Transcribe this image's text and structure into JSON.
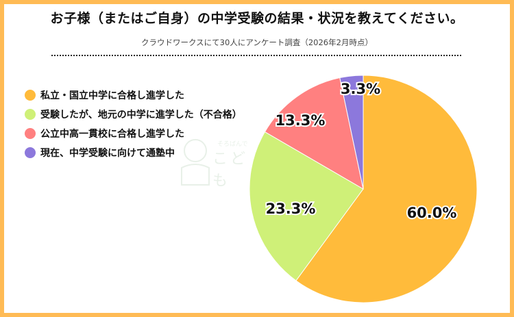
{
  "title": "お子様（またはご自身）の中学受験の結果・状況を教えてください。",
  "subtitle": "クラウドワークスにて30人にアンケート調査（2026年2月時点）",
  "watermark": {
    "tagline": "そろばんで",
    "logo": "こども"
  },
  "colors": {
    "frame": "#ffbb55",
    "private": "#ffbb3b",
    "failed": "#cff078",
    "public_integrated": "#ff8080",
    "cram": "#8c78dc"
  },
  "legend": [
    {
      "label": "私立・国立中学に合格し進学した",
      "color": "#ffbb3b"
    },
    {
      "label": "受験したが、地元の中学に進学した（不合格）",
      "color": "#cff078"
    },
    {
      "label": "公立中高一貫校に合格し進学した",
      "color": "#ff8080"
    },
    {
      "label": "現在、中学受験に向けて通塾中",
      "color": "#8c78dc"
    }
  ],
  "labels": [
    "60.0%",
    "23.3%",
    "13.3%",
    "3.3%"
  ],
  "chart_data": {
    "type": "pie",
    "title": "お子様（またはご自身）の中学受験の結果・状況を教えてください。",
    "subtitle": "クラウドワークスにて30人にアンケート調査（2026年2月時点）",
    "categories": [
      "私立・国立中学に合格し進学した",
      "受験したが、地元の中学に進学した（不合格）",
      "公立中高一貫校に合格し進学した",
      "現在、中学受験に向けて通塾中"
    ],
    "values": [
      60.0,
      23.3,
      13.3,
      3.3
    ],
    "colors": [
      "#ffbb3b",
      "#cff078",
      "#ff8080",
      "#8c78dc"
    ],
    "start_angle": "12 o'clock, clockwise",
    "legend_position": "left"
  }
}
